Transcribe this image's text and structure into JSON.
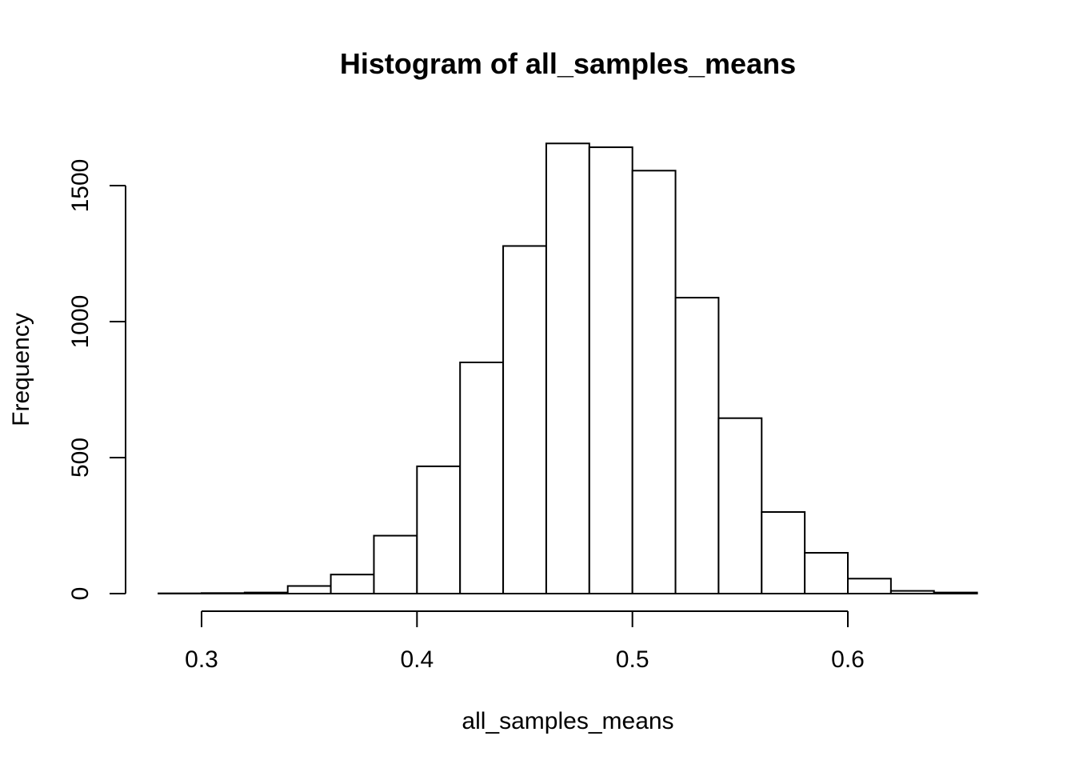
{
  "chart_data": {
    "type": "bar",
    "title": "Histogram of all_samples_means",
    "xlabel": "all_samples_means",
    "ylabel": "Frequency",
    "bins": [
      {
        "start": 0.28,
        "end": 0.3,
        "count": 1
      },
      {
        "start": 0.3,
        "end": 0.32,
        "count": 2
      },
      {
        "start": 0.32,
        "end": 0.34,
        "count": 4
      },
      {
        "start": 0.34,
        "end": 0.36,
        "count": 28
      },
      {
        "start": 0.36,
        "end": 0.38,
        "count": 70
      },
      {
        "start": 0.38,
        "end": 0.4,
        "count": 213
      },
      {
        "start": 0.4,
        "end": 0.42,
        "count": 468
      },
      {
        "start": 0.42,
        "end": 0.44,
        "count": 850
      },
      {
        "start": 0.44,
        "end": 0.46,
        "count": 1278
      },
      {
        "start": 0.46,
        "end": 0.48,
        "count": 1655
      },
      {
        "start": 0.48,
        "end": 0.5,
        "count": 1641
      },
      {
        "start": 0.5,
        "end": 0.52,
        "count": 1555
      },
      {
        "start": 0.52,
        "end": 0.54,
        "count": 1088
      },
      {
        "start": 0.54,
        "end": 0.56,
        "count": 645
      },
      {
        "start": 0.56,
        "end": 0.58,
        "count": 300
      },
      {
        "start": 0.58,
        "end": 0.6,
        "count": 150
      },
      {
        "start": 0.6,
        "end": 0.62,
        "count": 55
      },
      {
        "start": 0.62,
        "end": 0.64,
        "count": 10
      },
      {
        "start": 0.64,
        "end": 0.66,
        "count": 4
      }
    ],
    "xticks": [
      0.3,
      0.4,
      0.5,
      0.6
    ],
    "xtick_labels": [
      "0.3",
      "0.4",
      "0.5",
      "0.6"
    ],
    "yticks": [
      0,
      500,
      1000,
      1500
    ],
    "ytick_labels": [
      "0",
      "500",
      "1000",
      "1500"
    ],
    "xlim": [
      0.3,
      0.6
    ],
    "ylim": [
      0,
      1500
    ],
    "grid": false,
    "legend": false
  }
}
